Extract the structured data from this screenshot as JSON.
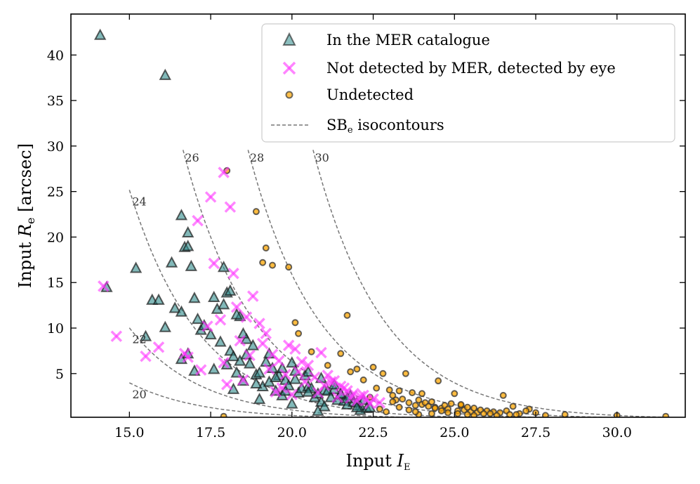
{
  "chart_data": {
    "type": "scatter",
    "xlabel": "Input I_E",
    "xlabel_parts": {
      "prefix": "Input ",
      "symbol": "I",
      "subscript": "E"
    },
    "ylabel": "Input R_e [arcsec]",
    "ylabel_parts": {
      "prefix": "Input ",
      "symbol": "R",
      "subscript": "e",
      "suffix": " [arcsec]"
    },
    "xlim": [
      13.2,
      32.1
    ],
    "ylim": [
      0.2,
      44.5
    ],
    "xticks": [
      15.0,
      17.5,
      20.0,
      22.5,
      25.0,
      27.5,
      30.0
    ],
    "xtick_labels": [
      "15.0",
      "17.5",
      "20.0",
      "22.5",
      "25.0",
      "27.5",
      "30.0"
    ],
    "yticks": [
      5,
      10,
      15,
      20,
      25,
      30,
      35,
      40
    ],
    "ytick_labels": [
      "5",
      "10",
      "15",
      "20",
      "25",
      "30",
      "35",
      "40"
    ],
    "grid": false,
    "legend_position": "top-right",
    "colors": {
      "triangle_fill": "#2e8b8b",
      "triangle_edge": "#1a1a1a",
      "cross": "#ff33ff",
      "circle_fill": "#ffa500",
      "circle_edge": "#333333",
      "isocontour": "#777777"
    },
    "isocontours": [
      {
        "label": "20",
        "sb": 20
      },
      {
        "label": "22",
        "sb": 22
      },
      {
        "label": "24",
        "sb": 24
      },
      {
        "label": "26",
        "sb": 26
      },
      {
        "label": "28",
        "sb": 28
      },
      {
        "label": "30",
        "sb": 30
      }
    ],
    "series": [
      {
        "name": "In the MER catalogue",
        "marker": "triangle",
        "x": [
          14.1,
          16.1,
          14.3,
          15.2,
          15.5,
          15.7,
          15.9,
          16.1,
          16.3,
          16.4,
          16.6,
          16.7,
          16.8,
          16.6,
          16.8,
          16.9,
          17.0,
          17.1,
          17.2,
          17.3,
          17.5,
          17.6,
          17.7,
          17.8,
          17.9,
          18.0,
          18.1,
          18.2,
          18.3,
          18.4,
          18.5,
          18.6,
          18.7,
          18.8,
          18.9,
          19.0,
          19.1,
          19.2,
          19.3,
          19.4,
          19.5,
          19.6,
          19.7,
          19.8,
          19.9,
          20.0,
          20.1,
          20.2,
          20.3,
          20.4,
          20.5,
          20.6,
          20.7,
          20.8,
          20.9,
          21.0,
          21.1,
          21.2,
          21.3,
          21.4,
          21.5,
          21.6,
          21.7,
          21.8,
          21.9,
          22.0,
          22.1,
          22.2,
          22.3,
          22.4,
          16.6,
          16.8,
          17.6,
          17.9,
          18.3,
          18.6,
          18.1,
          18.4,
          18.9,
          19.3,
          19.7,
          20.1,
          20.5,
          20.9,
          21.3,
          21.7,
          22.1,
          18.0,
          18.5,
          19.0,
          19.5,
          20.0,
          20.5,
          21.0,
          21.5,
          22.0,
          17.0,
          18.2,
          19.8,
          20.8
        ],
        "y": [
          42.2,
          37.8,
          14.5,
          16.6,
          9.1,
          13.1,
          13.1,
          10.1,
          17.2,
          12.2,
          22.4,
          18.9,
          19.0,
          6.6,
          7.2,
          16.8,
          13.3,
          11.0,
          9.8,
          10.3,
          9.3,
          13.4,
          12.1,
          8.5,
          12.6,
          13.9,
          7.5,
          6.9,
          5.1,
          11.3,
          4.2,
          7.1,
          6.1,
          8.1,
          4.9,
          5.1,
          3.6,
          6.3,
          4.1,
          5.6,
          3.1,
          4.8,
          5.6,
          4.3,
          3.7,
          6.2,
          4.4,
          2.9,
          3.4,
          4.8,
          3.6,
          3.4,
          2.4,
          2.8,
          4.5,
          3.2,
          3.1,
          2.4,
          3.3,
          2.1,
          2.7,
          2.0,
          1.6,
          2.6,
          1.9,
          1.8,
          1.5,
          2.1,
          1.2,
          1.3,
          11.8,
          20.5,
          5.5,
          16.7,
          11.5,
          8.8,
          14.1,
          6.4,
          3.9,
          7.2,
          2.6,
          5.3,
          3.0,
          1.9,
          3.8,
          2.3,
          1.0,
          6.0,
          9.4,
          2.2,
          4.6,
          1.7,
          5.2,
          1.4,
          2.8,
          1.3,
          5.3,
          3.3,
          3.1,
          0.9
        ]
      },
      {
        "name": "Not detected by MER, detected by eye",
        "marker": "cross",
        "x": [
          14.2,
          14.6,
          15.5,
          15.9,
          16.7,
          17.1,
          17.5,
          17.6,
          17.9,
          18.1,
          18.2,
          18.4,
          18.8,
          19.0,
          19.2,
          19.4,
          19.6,
          19.9,
          20.1,
          20.3,
          20.5,
          20.7,
          20.9,
          21.1,
          21.3,
          21.5,
          21.7,
          21.9,
          22.1,
          22.3,
          22.5,
          22.7,
          17.2,
          17.8,
          18.3,
          18.7,
          19.3,
          19.8,
          20.4,
          21.0,
          21.6,
          22.2,
          17.9,
          18.5,
          19.1,
          19.7,
          20.2,
          20.8,
          21.4,
          22.0,
          16.8,
          17.4,
          18.0,
          18.6,
          19.5,
          20.0,
          21.2,
          21.8,
          22.4
        ],
        "y": [
          14.6,
          9.1,
          6.9,
          7.9,
          7.2,
          21.8,
          24.4,
          17.1,
          27.1,
          23.3,
          16.0,
          8.6,
          13.5,
          10.5,
          9.4,
          7.1,
          6.4,
          8.1,
          7.7,
          6.3,
          5.9,
          4.6,
          7.3,
          4.8,
          4.2,
          3.6,
          3.1,
          2.8,
          2.5,
          2.1,
          2.2,
          1.8,
          5.4,
          10.9,
          12.3,
          7.0,
          5.5,
          4.9,
          4.1,
          3.7,
          3.4,
          2.6,
          6.2,
          4.3,
          8.3,
          3.4,
          5.2,
          2.9,
          2.4,
          2.0,
          6.8,
          10.2,
          3.8,
          11.2,
          3.0,
          2.7,
          4.1,
          2.3,
          1.7
        ]
      },
      {
        "name": "Undetected",
        "marker": "circle",
        "x": [
          18.0,
          18.9,
          19.2,
          19.4,
          19.1,
          19.9,
          20.1,
          20.2,
          20.6,
          21.1,
          21.5,
          21.7,
          21.8,
          22.0,
          22.2,
          22.5,
          22.6,
          22.8,
          23.0,
          23.1,
          23.2,
          23.3,
          23.4,
          23.5,
          23.6,
          23.7,
          23.8,
          23.9,
          24.0,
          24.1,
          24.2,
          24.3,
          24.4,
          24.5,
          24.6,
          24.7,
          24.8,
          24.9,
          25.0,
          25.1,
          25.2,
          25.3,
          25.4,
          25.5,
          25.6,
          25.7,
          25.8,
          26.0,
          26.2,
          26.4,
          26.5,
          26.6,
          26.8,
          27.0,
          27.3,
          27.5,
          28.4,
          30.0,
          31.5,
          24.0,
          23.3,
          24.6,
          25.1,
          25.9,
          26.7,
          27.2,
          22.9,
          23.6,
          24.3,
          25.4,
          26.3,
          27.8,
          22.7,
          23.9,
          24.8,
          25.6,
          26.9,
          23.1,
          24.4,
          25.2,
          26.1,
          22.4,
          23.8,
          17.9
        ],
        "y": [
          27.3,
          22.8,
          18.8,
          16.9,
          17.2,
          16.7,
          10.6,
          9.4,
          7.4,
          5.9,
          7.2,
          11.4,
          5.2,
          5.5,
          4.3,
          5.7,
          3.4,
          5.0,
          3.2,
          2.6,
          2.1,
          3.1,
          2.2,
          5.0,
          1.8,
          2.9,
          1.5,
          2.1,
          1.6,
          1.8,
          1.4,
          1.9,
          1.3,
          4.2,
          1.2,
          1.5,
          1.1,
          1.7,
          2.8,
          0.9,
          1.5,
          1.0,
          1.3,
          0.8,
          1.2,
          0.7,
          1.0,
          0.9,
          0.8,
          0.7,
          2.6,
          0.9,
          1.4,
          0.6,
          1.1,
          0.7,
          0.5,
          0.4,
          0.3,
          2.8,
          1.3,
          0.9,
          0.6,
          0.6,
          0.5,
          0.9,
          0.8,
          1.0,
          0.6,
          0.5,
          0.4,
          0.4,
          1.1,
          0.5,
          0.7,
          0.4,
          0.5,
          1.9,
          1.2,
          1.6,
          0.6,
          2.4,
          0.8,
          0.3
        ]
      },
      {
        "name": "SB_e isocontours",
        "name_parts": {
          "prefix": "SB",
          "subscript": "e",
          "suffix": " isocontours"
        },
        "marker": "dashed-line"
      }
    ]
  }
}
